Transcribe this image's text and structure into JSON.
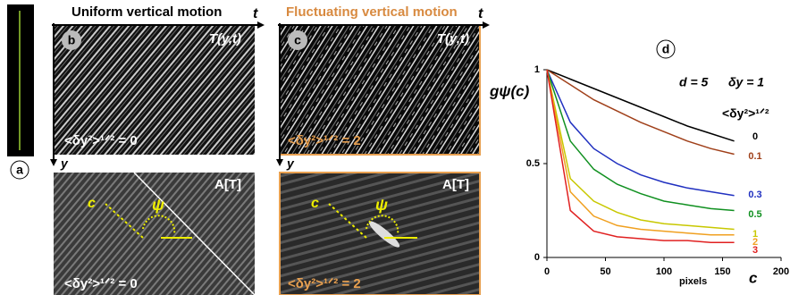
{
  "panels": {
    "a": {
      "label": "a"
    },
    "b": {
      "label": "b",
      "title": "Uniform vertical motion",
      "image_top": "T(y,t)",
      "image_bottom": "A[T]",
      "t_axis": "t",
      "y_axis": "y",
      "moment_top": "<δy²>¹ᐟ² = 0",
      "moment_bottom": "<δy²>¹ᐟ² = 0",
      "c_arrow": "c",
      "angle": "ψ"
    },
    "c": {
      "label": "c",
      "title": "Fluctuating vertical motion",
      "image_top": "T(y,t)",
      "image_bottom": "A[T]",
      "t_axis": "t",
      "y_axis": "y",
      "moment_top": "<δy²>¹ᐟ² = 2",
      "moment_bottom": "<δy²>¹ᐟ² = 2",
      "c_arrow": "c",
      "angle": "ψ"
    }
  },
  "chart_data": {
    "type": "line",
    "panel_label": "d",
    "y_label": "gψ(c)",
    "x_label": "c",
    "x_unit": "pixels",
    "annotations": [
      "d = 5",
      "δy = 1"
    ],
    "legend_title": "<δy²>¹ᐟ²",
    "x": [
      0,
      20,
      40,
      60,
      80,
      100,
      120,
      140,
      160
    ],
    "series": [
      {
        "name": "0",
        "color": "#000000",
        "values": [
          1,
          0.95,
          0.9,
          0.85,
          0.8,
          0.75,
          0.7,
          0.66,
          0.62
        ]
      },
      {
        "name": "0.1",
        "color": "#a0401a",
        "values": [
          1,
          0.92,
          0.84,
          0.78,
          0.72,
          0.67,
          0.62,
          0.58,
          0.55
        ]
      },
      {
        "name": "0.3",
        "color": "#2030c0",
        "values": [
          1,
          0.72,
          0.58,
          0.5,
          0.44,
          0.4,
          0.37,
          0.35,
          0.33
        ]
      },
      {
        "name": "0.5",
        "color": "#109020",
        "values": [
          1,
          0.62,
          0.47,
          0.39,
          0.34,
          0.3,
          0.28,
          0.26,
          0.25
        ]
      },
      {
        "name": "1",
        "color": "#c8c800",
        "values": [
          1,
          0.42,
          0.3,
          0.24,
          0.2,
          0.18,
          0.17,
          0.16,
          0.15
        ]
      },
      {
        "name": "2",
        "color": "#f0a020",
        "values": [
          1,
          0.35,
          0.22,
          0.17,
          0.15,
          0.14,
          0.13,
          0.12,
          0.12
        ]
      },
      {
        "name": "3",
        "color": "#e02020",
        "values": [
          1,
          0.25,
          0.14,
          0.11,
          0.1,
          0.09,
          0.09,
          0.08,
          0.08
        ]
      }
    ],
    "xlim": [
      0,
      200
    ],
    "xticks": [
      0,
      50,
      100,
      150,
      200
    ],
    "ylim": [
      0,
      1
    ],
    "yticks": [
      0,
      0.5,
      1
    ]
  }
}
